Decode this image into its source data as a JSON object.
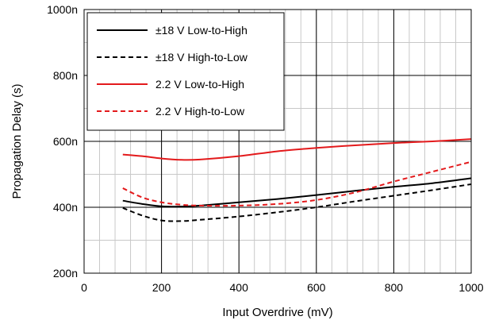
{
  "chart_data": {
    "type": "line",
    "xlabel": "Input Overdrive (mV)",
    "ylabel": "Propagation Delay (s)",
    "xlim": [
      0,
      1000
    ],
    "ylim": [
      2e-07,
      1e-06
    ],
    "x_ticks": [
      0,
      200,
      400,
      600,
      800,
      1000
    ],
    "x_tick_labels": [
      "0",
      "200",
      "400",
      "600",
      "800",
      "1000"
    ],
    "y_ticks": [
      2e-07,
      4e-07,
      6e-07,
      8e-07,
      1e-06
    ],
    "y_tick_labels": [
      "200n",
      "400n",
      "600n",
      "800n",
      "1000n"
    ],
    "grid": true,
    "legend_position": "top-left",
    "series": [
      {
        "name": "±18 V Low-to-High",
        "color": "#000000",
        "dash": "solid",
        "x": [
          100,
          150,
          200,
          250,
          300,
          400,
          500,
          600,
          700,
          800,
          900,
          1000
        ],
        "y": [
          4.2e-07,
          4.1e-07,
          4.03e-07,
          4.02e-07,
          4.05e-07,
          4.15e-07,
          4.25e-07,
          4.37e-07,
          4.5e-07,
          4.62e-07,
          4.73e-07,
          4.88e-07
        ]
      },
      {
        "name": "±18 V High-to-Low",
        "color": "#000000",
        "dash": "dashed",
        "x": [
          100,
          150,
          200,
          250,
          300,
          400,
          500,
          600,
          700,
          800,
          900,
          1000
        ],
        "y": [
          3.98e-07,
          3.75e-07,
          3.6e-07,
          3.58e-07,
          3.62e-07,
          3.72e-07,
          3.85e-07,
          4e-07,
          4.18e-07,
          4.35e-07,
          4.52e-07,
          4.7e-07
        ]
      },
      {
        "name": "2.2 V Low-to-High",
        "color": "#e31a1c",
        "dash": "solid",
        "x": [
          100,
          150,
          200,
          250,
          300,
          400,
          500,
          600,
          700,
          800,
          900,
          1000
        ],
        "y": [
          5.6e-07,
          5.55e-07,
          5.48e-07,
          5.44e-07,
          5.45e-07,
          5.55e-07,
          5.7e-07,
          5.8e-07,
          5.88e-07,
          5.95e-07,
          6e-07,
          6.07e-07
        ]
      },
      {
        "name": "2.2 V High-to-Low",
        "color": "#e31a1c",
        "dash": "dashed",
        "x": [
          100,
          150,
          200,
          250,
          300,
          400,
          500,
          600,
          700,
          800,
          900,
          1000
        ],
        "y": [
          4.58e-07,
          4.3e-07,
          4.15e-07,
          4.08e-07,
          4.05e-07,
          4.05e-07,
          4.1e-07,
          4.22e-07,
          4.45e-07,
          4.78e-07,
          5.08e-07,
          5.38e-07
        ]
      }
    ]
  }
}
